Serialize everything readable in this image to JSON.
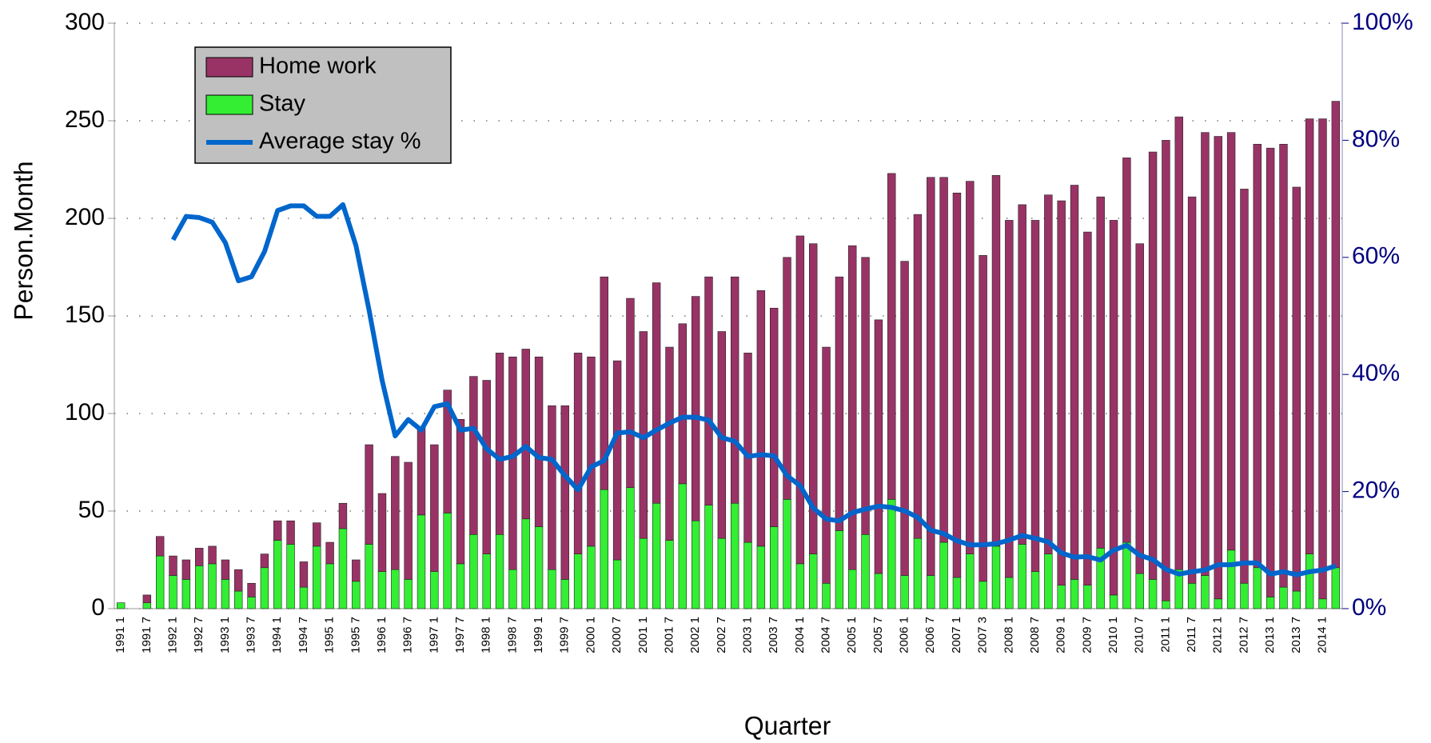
{
  "chart_data": {
    "type": "bar",
    "stacked": true,
    "x_label": "Quarter",
    "y_label": "Person.Month",
    "categories": [
      "1991 1",
      null,
      "1991 7",
      null,
      "1992 1",
      null,
      "1992 7",
      null,
      "1993 1",
      null,
      "1993 7",
      null,
      "1994 1",
      null,
      "1994 7",
      null,
      "1995 1",
      null,
      "1995 7",
      null,
      "1996 1",
      null,
      "1996 7",
      null,
      "1997 1",
      null,
      "1997 7",
      null,
      "1998 1",
      null,
      "1998 7",
      null,
      "1999 1",
      null,
      "1999 7",
      null,
      "2000 1",
      null,
      "2000 7",
      null,
      "2001 1",
      null,
      "2001 7",
      null,
      "2002 1",
      null,
      "2002 7",
      null,
      "2003 1",
      null,
      "2003 7",
      null,
      "2004 1",
      null,
      "2004 7",
      null,
      "2005 1",
      null,
      "2005 7",
      null,
      "2006 1",
      null,
      "2006 7",
      null,
      "2007 1",
      null,
      "2007 3",
      null,
      "2008 1",
      null,
      "2008 7",
      null,
      "2009 1",
      null,
      "2009 7",
      null,
      "2010 1",
      null,
      "2010 7",
      null,
      "2011 1",
      null,
      "2011 7",
      null,
      "2012 1",
      null,
      "2012 7",
      null,
      "2013 1",
      null,
      "2013 7",
      null,
      "2014 1",
      null
    ],
    "series": [
      {
        "name": "Stay",
        "color": "#33ee33",
        "values": [
          3,
          0,
          3,
          27,
          17,
          15,
          22,
          23,
          15,
          9,
          6,
          21,
          35,
          33,
          11,
          32,
          23,
          41,
          14,
          33,
          19,
          20,
          15,
          48,
          19,
          49,
          23,
          38,
          28,
          38,
          20,
          46,
          42,
          20,
          15,
          28,
          32,
          61,
          25,
          62,
          36,
          54,
          35,
          64,
          45,
          53,
          36,
          54,
          34,
          32,
          42,
          56,
          23,
          28,
          13,
          40,
          20,
          38,
          18,
          56,
          17,
          36,
          17,
          34,
          16,
          28,
          14,
          32,
          16,
          33,
          19,
          28,
          12,
          15,
          12,
          31,
          7,
          34,
          18,
          15,
          4,
          20,
          13,
          17,
          5,
          30,
          13,
          21,
          6,
          11,
          9,
          28,
          5,
          21
        ]
      },
      {
        "name": "Home work",
        "color": "#993366",
        "values": [
          0,
          0,
          4,
          10,
          10,
          10,
          9,
          9,
          10,
          11,
          7,
          7,
          10,
          12,
          13,
          12,
          11,
          13,
          11,
          51,
          40,
          58,
          60,
          45,
          65,
          63,
          74,
          81,
          89,
          93,
          109,
          87,
          87,
          84,
          89,
          103,
          97,
          109,
          102,
          97,
          106,
          113,
          99,
          82,
          115,
          117,
          106,
          116,
          97,
          131,
          112,
          124,
          168,
          159,
          121,
          130,
          166,
          142,
          130,
          167,
          161,
          166,
          204,
          187,
          197,
          191,
          167,
          190,
          183,
          174,
          180,
          184,
          197,
          202,
          181,
          180,
          192,
          197,
          169,
          219,
          236,
          232,
          198,
          227,
          237,
          214,
          202,
          217,
          230,
          227,
          207,
          223,
          246,
          239
        ]
      },
      {
        "name": "Average stay %",
        "type": "line",
        "axis": "y2",
        "color": "#0066cc",
        "values": [
          null,
          null,
          null,
          null,
          63,
          67,
          66.8,
          66,
          62.5,
          56,
          56.7,
          61,
          68,
          68.8,
          68.8,
          67,
          67,
          69,
          62,
          51,
          39,
          29.5,
          32.3,
          30.5,
          34.5,
          35,
          30.5,
          30.8,
          27.3,
          25.5,
          26,
          27.7,
          25.8,
          25.5,
          22.7,
          20.3,
          24.2,
          25.3,
          30,
          30.2,
          29.2,
          30.5,
          31.7,
          32.7,
          32.7,
          32.2,
          29.2,
          28.6,
          26,
          26.3,
          26.1,
          22.7,
          21,
          17.2,
          15.3,
          15,
          16.4,
          17,
          17.5,
          17.3,
          16.7,
          15.6,
          13.4,
          12.8,
          11.6,
          10.9,
          10.9,
          11.1,
          11.7,
          12.5,
          12,
          11.4,
          9.5,
          8.8,
          8.9,
          8.3,
          10,
          10.8,
          9.1,
          8.4,
          6.7,
          5.9,
          6.3,
          6.6,
          7.5,
          7.5,
          7.8,
          7.8,
          5.9,
          6.3,
          5.8,
          6.3,
          6.6,
          7.3
        ]
      }
    ],
    "legend_order": [
      1,
      0,
      2
    ],
    "legend_position": "upper left",
    "ylim": [
      0,
      300
    ],
    "yticks": [
      0,
      50,
      100,
      150,
      200,
      250,
      300
    ],
    "y2lim": [
      0,
      100
    ],
    "y2ticks": [
      {
        "value": 0,
        "label": "0%"
      },
      {
        "value": 20,
        "label": "20%"
      },
      {
        "value": 40,
        "label": "40%"
      },
      {
        "value": 60,
        "label": "60%"
      },
      {
        "value": 80,
        "label": "80%"
      },
      {
        "value": 100,
        "label": "100%"
      }
    ],
    "grid": true
  }
}
